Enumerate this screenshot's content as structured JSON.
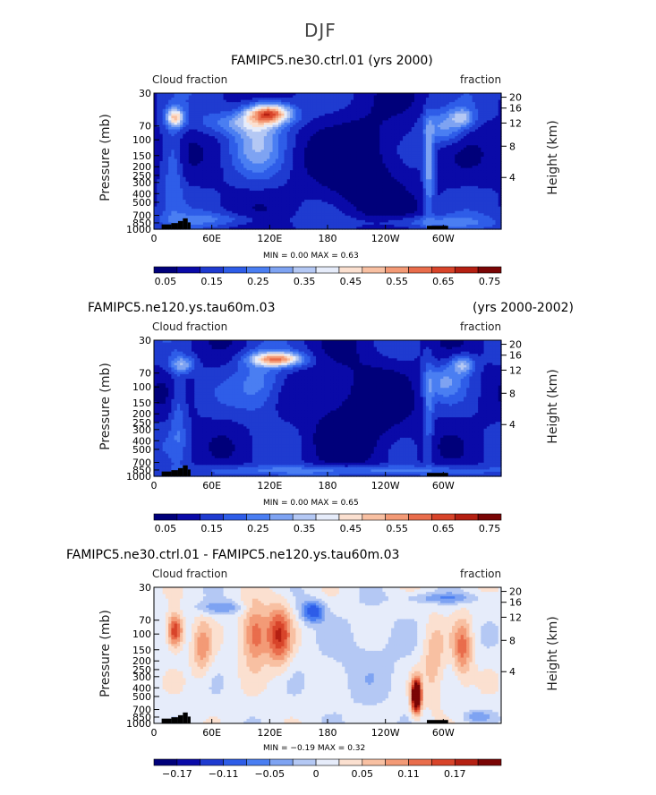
{
  "title": "DJF",
  "colors": {
    "full": [
      "#00007a",
      "#0a0aa8",
      "#1f3bd0",
      "#2e5de8",
      "#4a7ef2",
      "#7ea3f2",
      "#b4c8f4",
      "#e6ecfa",
      "#fbe0d0",
      "#f8c0a2",
      "#f39a76",
      "#e96d4c",
      "#d8442a",
      "#b52012",
      "#7a0505"
    ],
    "diff": [
      "#00007a",
      "#0a0aa8",
      "#1f3bd0",
      "#2e5de8",
      "#4a7ef2",
      "#7ea3f2",
      "#b4c8f4",
      "#e6ecfa",
      "#fbe0d0",
      "#f8c0a2",
      "#f39a76",
      "#e96d4c",
      "#d8442a",
      "#b52012",
      "#7a0505"
    ]
  },
  "chart_data": [
    {
      "type": "heatmap",
      "panel": "top",
      "title_left": "FAMIPC5.ne30.ctrl.01 (yrs 2000)",
      "title_right": "",
      "sub_left": "Cloud fraction",
      "sub_right": "fraction",
      "ylabel": "Pressure (mb)",
      "ylabel_right": "Height (km)",
      "x_ticks": [
        "0",
        "60E",
        "120E",
        "180",
        "120W",
        "60W"
      ],
      "y_ticks": [
        "30",
        "70",
        "100",
        "150",
        "200",
        "250",
        "300",
        "400",
        "500",
        "700",
        "850",
        "1000"
      ],
      "y_right_ticks": [
        "20",
        "16",
        "12",
        "8",
        "4"
      ],
      "stats": "MIN =    0.00   MAX =     0.63",
      "colorbar_labels": [
        "0.05",
        "0.15",
        "0.25",
        "0.35",
        "0.45",
        "0.55",
        "0.65",
        "0.75"
      ],
      "range": [
        0,
        0.8
      ]
    },
    {
      "type": "heatmap",
      "panel": "middle",
      "title_left": "FAMIPC5.ne120.ys.tau60m.03",
      "title_right": "(yrs 2000-2002)",
      "sub_left": "Cloud fraction",
      "sub_right": "fraction",
      "ylabel": "Pressure (mb)",
      "ylabel_right": "Height (km)",
      "x_ticks": [
        "0",
        "60E",
        "120E",
        "180",
        "120W",
        "60W"
      ],
      "y_ticks": [
        "30",
        "70",
        "100",
        "150",
        "200",
        "250",
        "300",
        "400",
        "500",
        "700",
        "850",
        "1000"
      ],
      "y_right_ticks": [
        "20",
        "16",
        "12",
        "8",
        "4"
      ],
      "stats": "MIN =    0.00   MAX =     0.65",
      "colorbar_labels": [
        "0.05",
        "0.15",
        "0.25",
        "0.35",
        "0.45",
        "0.55",
        "0.65",
        "0.75"
      ],
      "range": [
        0,
        0.8
      ]
    },
    {
      "type": "heatmap",
      "panel": "bottom",
      "title_left": "FAMIPC5.ne30.ctrl.01 - FAMIPC5.ne120.ys.tau60m.03",
      "title_right": "",
      "sub_left": "Cloud fraction",
      "sub_right": "fraction",
      "ylabel": "Pressure (mb)",
      "ylabel_right": "Height (km)",
      "x_ticks": [
        "0",
        "60E",
        "120E",
        "180",
        "120W",
        "60W"
      ],
      "y_ticks": [
        "30",
        "70",
        "100",
        "150",
        "200",
        "250",
        "300",
        "400",
        "500",
        "700",
        "850",
        "1000"
      ],
      "y_right_ticks": [
        "20",
        "16",
        "12",
        "8",
        "4"
      ],
      "stats": "MIN =  −0.19   MAX =     0.32",
      "colorbar_labels": [
        "−0.17",
        "−0.11",
        "−0.05",
        "0",
        "0.05",
        "0.11",
        "0.17"
      ],
      "range": [
        -0.2,
        0.2
      ]
    }
  ]
}
